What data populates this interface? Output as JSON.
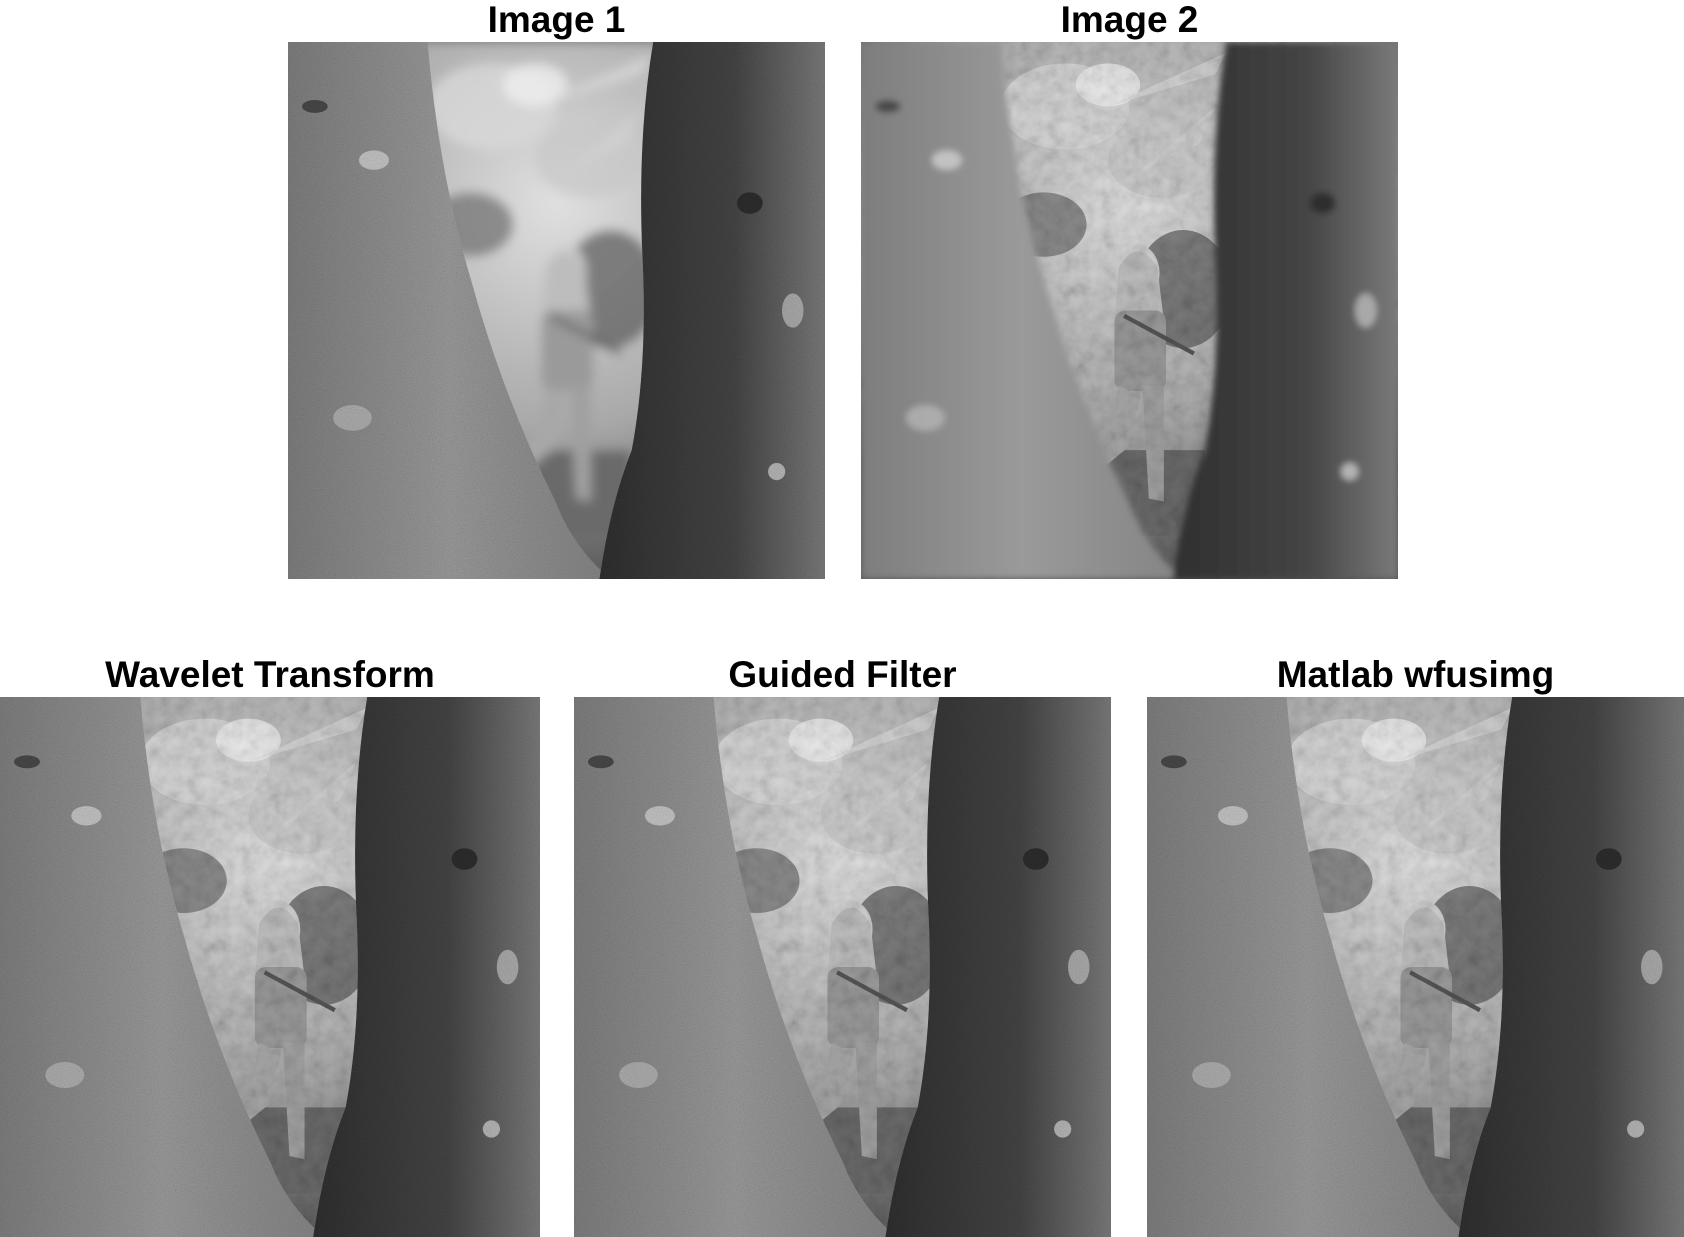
{
  "panels": {
    "image1": {
      "title": "Image 1"
    },
    "image2": {
      "title": "Image 2"
    },
    "wavelet": {
      "title": "Wavelet Transform"
    },
    "guided": {
      "title": "Guided Filter"
    },
    "matlab": {
      "title": "Matlab wfusimg"
    }
  },
  "scene": {
    "description_icon": "grayscale-photo-of-child-between-two-tree-trunks",
    "colors": {
      "left_trunk": "#8c8c8c",
      "right_trunk": "#3f3f3f",
      "background": "#b9b9b9",
      "child": "#9a9a9a"
    }
  }
}
